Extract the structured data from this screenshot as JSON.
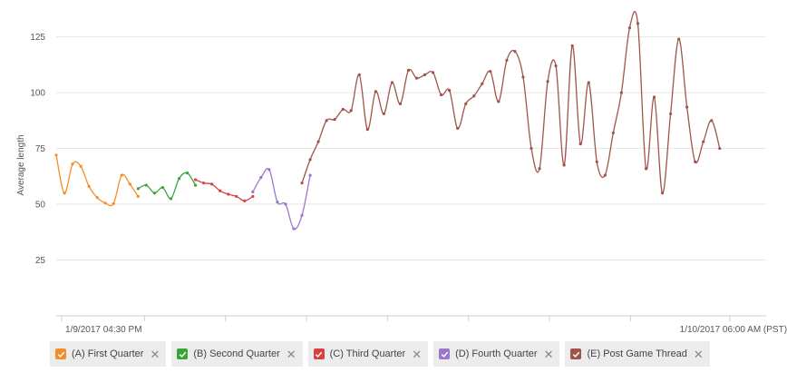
{
  "chart_data": {
    "type": "line",
    "title": "",
    "xlabel": "",
    "ylabel": "Average length",
    "yticks": [
      25,
      50,
      75,
      100,
      125
    ],
    "ylim": [
      0,
      135
    ],
    "xlim": [
      0,
      78
    ],
    "x_axis_labels": [
      {
        "label": "1/9/2017 04:30 PM",
        "x": 0.6
      },
      {
        "label": "1/10/2017 06:00 AM (PST)",
        "x": 74
      }
    ],
    "x_minor_ticks": [
      9.7,
      18.6,
      27.5,
      36.4,
      45.3,
      54.2,
      63.1
    ],
    "grid": true,
    "series": [
      {
        "name": "(A) First Quarter",
        "color": "#f28e2b",
        "points": [
          [
            0,
            72
          ],
          [
            0.9,
            55
          ],
          [
            1.8,
            68
          ],
          [
            2.7,
            67
          ],
          [
            3.6,
            58
          ],
          [
            4.5,
            53
          ],
          [
            5.4,
            50.5
          ],
          [
            6.3,
            50.3
          ],
          [
            7.2,
            63
          ],
          [
            8.1,
            59
          ],
          [
            9,
            53.5
          ]
        ]
      },
      {
        "name": "(B) Second Quarter",
        "color": "#3aa63a",
        "points": [
          [
            9,
            57
          ],
          [
            9.9,
            58.5
          ],
          [
            10.8,
            55
          ],
          [
            11.7,
            57.5
          ],
          [
            12.6,
            52.5
          ],
          [
            13.5,
            61.5
          ],
          [
            14.4,
            64
          ],
          [
            15.3,
            58.5
          ]
        ]
      },
      {
        "name": "(C) Third Quarter",
        "color": "#d94040",
        "points": [
          [
            15.3,
            61
          ],
          [
            16.2,
            59.5
          ],
          [
            17.1,
            59
          ],
          [
            18,
            56
          ],
          [
            18.9,
            54.5
          ],
          [
            19.8,
            53.5
          ],
          [
            20.7,
            51.5
          ],
          [
            21.6,
            53.5
          ]
        ]
      },
      {
        "name": "(D) Fourth Quarter",
        "color": "#9b77c9",
        "points": [
          [
            21.6,
            55.5
          ],
          [
            22.5,
            62
          ],
          [
            23.4,
            65.5
          ],
          [
            24.3,
            51
          ],
          [
            25.2,
            50
          ],
          [
            26.1,
            39
          ],
          [
            27,
            45
          ],
          [
            27.9,
            63
          ]
        ]
      },
      {
        "name": "(E) Post Game Thread",
        "color": "#a0554b",
        "points": [
          [
            27,
            59.5
          ],
          [
            27.9,
            70
          ],
          [
            28.8,
            78
          ],
          [
            29.7,
            87.5
          ],
          [
            30.6,
            88
          ],
          [
            31.5,
            92.5
          ],
          [
            32.4,
            92
          ],
          [
            33.3,
            108
          ],
          [
            34.2,
            83.5
          ],
          [
            35.1,
            100.5
          ],
          [
            36,
            90.5
          ],
          [
            36.9,
            104.5
          ],
          [
            37.8,
            95
          ],
          [
            38.7,
            110
          ],
          [
            39.6,
            106.5
          ],
          [
            40.5,
            108
          ],
          [
            41.4,
            109
          ],
          [
            42.3,
            99
          ],
          [
            43.2,
            101
          ],
          [
            44.1,
            84
          ],
          [
            45,
            95
          ],
          [
            45.9,
            98.5
          ],
          [
            46.8,
            104
          ],
          [
            47.7,
            109.5
          ],
          [
            48.6,
            96
          ],
          [
            49.5,
            114.5
          ],
          [
            50.4,
            118.5
          ],
          [
            51.3,
            107
          ],
          [
            52.2,
            75
          ],
          [
            53.1,
            66
          ],
          [
            54,
            105
          ],
          [
            54.9,
            112
          ],
          [
            55.8,
            67.5
          ],
          [
            56.7,
            121
          ],
          [
            57.6,
            77
          ],
          [
            58.5,
            104.5
          ],
          [
            59.4,
            69
          ],
          [
            60.3,
            63
          ],
          [
            61.2,
            82
          ],
          [
            62.1,
            100
          ],
          [
            63,
            129
          ],
          [
            63.9,
            131
          ],
          [
            64.8,
            66
          ],
          [
            65.7,
            98
          ],
          [
            66.6,
            55
          ],
          [
            67.5,
            90.5
          ],
          [
            68.4,
            124
          ],
          [
            69.3,
            93.5
          ],
          [
            70.2,
            69
          ],
          [
            71.1,
            78
          ],
          [
            72,
            87.5
          ],
          [
            72.9,
            75
          ]
        ]
      }
    ],
    "legend_position": "bottom-left"
  }
}
